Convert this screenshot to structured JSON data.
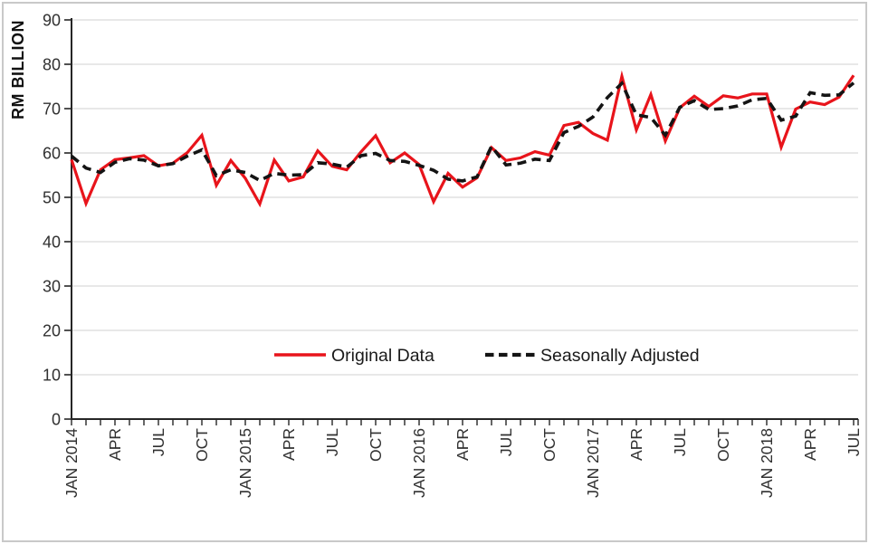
{
  "figure": {
    "y_axis_title": "RM BILLION"
  },
  "legend": {
    "items": [
      {
        "label": "Original Data",
        "color": "#e8141b",
        "style": "solid"
      },
      {
        "label": "Seasonally Adjusted",
        "color": "#141414",
        "style": "dashed"
      }
    ]
  },
  "chart_data": {
    "type": "line",
    "title": "",
    "xlabel": "",
    "ylabel": "RM BILLION",
    "x_unit": "month",
    "x_start": "JAN 2014",
    "x_end": "JUL 2018",
    "n_points": 55,
    "months_per_labeled_tick": 3,
    "x_tick_labels": [
      "JAN 2014",
      "APR",
      "JUL",
      "OCT",
      "JAN 2015",
      "APR",
      "JUL",
      "OCT",
      "JAN 2016",
      "APR",
      "JUL",
      "OCT",
      "JAN 2017",
      "APR",
      "JUL",
      "OCT",
      "JAN 2018",
      "APR",
      "JUL"
    ],
    "ylim": [
      0,
      90
    ],
    "y_ticks": [
      0,
      10,
      20,
      30,
      40,
      50,
      60,
      70,
      80,
      90
    ],
    "grid": "horizontal",
    "legend_position": "inside-bottom-center",
    "colors": {
      "grid": "#d9d9d9",
      "axis": "#262626",
      "original": "#e8141b",
      "seasonal": "#141414"
    },
    "series": [
      {
        "name": "Original Data",
        "color": "#e8141b",
        "style": "solid",
        "values": [
          58.5,
          48.6,
          56.2,
          58.5,
          58.9,
          59.4,
          57.1,
          57.7,
          60.1,
          64.0,
          52.7,
          58.3,
          54.3,
          48.5,
          58.4,
          53.7,
          54.6,
          60.5,
          57.0,
          56.2,
          60.3,
          63.9,
          57.8,
          60.0,
          57.4,
          49.0,
          55.4,
          52.3,
          54.4,
          61.2,
          58.3,
          58.9,
          60.3,
          59.5,
          66.2,
          66.9,
          64.4,
          62.9,
          77.3,
          65.2,
          73.2,
          62.7,
          70.2,
          72.8,
          70.5,
          72.9,
          72.4,
          73.3,
          73.3,
          61.3,
          69.9,
          71.5,
          70.9,
          72.6,
          77.5
        ]
      },
      {
        "name": "Seasonally Adjusted",
        "color": "#141414",
        "style": "dashed",
        "values": [
          59.3,
          56.6,
          55.6,
          57.9,
          58.7,
          58.4,
          57.1,
          57.6,
          59.3,
          60.7,
          54.9,
          56.2,
          55.6,
          53.8,
          55.4,
          55.0,
          55.1,
          57.8,
          57.5,
          56.8,
          59.4,
          59.9,
          58.3,
          58.1,
          57.2,
          56.1,
          54.1,
          53.7,
          54.6,
          61.5,
          57.3,
          57.7,
          58.6,
          58.3,
          64.6,
          66.0,
          68.1,
          72.5,
          75.7,
          68.6,
          68.0,
          64.0,
          70.3,
          71.8,
          69.8,
          70.0,
          70.6,
          72.0,
          72.3,
          67.4,
          68.3,
          73.6,
          73.0,
          73.1,
          75.8
        ]
      }
    ]
  }
}
